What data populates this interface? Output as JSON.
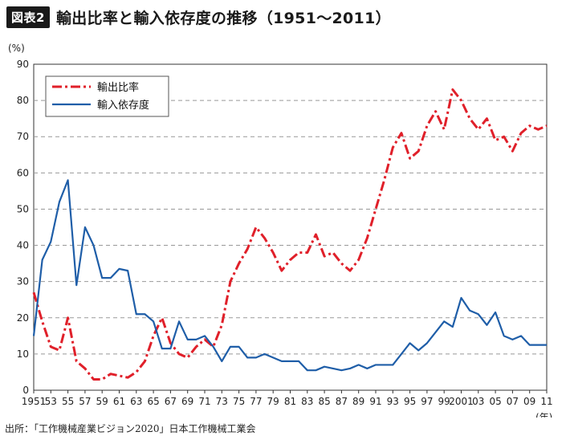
{
  "header": {
    "badge": "図表2",
    "title": "輸出比率と輸入依存度の推移（1951〜2011）"
  },
  "source": "出所：「工作機械産業ビジョン2020」日本工作機械工業会",
  "colors": {
    "export": "#e0202a",
    "import": "#1f5ea8",
    "grid": "#999999"
  },
  "chart_data": {
    "type": "line",
    "y_unit_label": "(%)",
    "x_unit_label": "(年)",
    "ylim": [
      0,
      90
    ],
    "yticks": [
      0,
      10,
      20,
      30,
      40,
      50,
      60,
      70,
      80,
      90
    ],
    "xlim": [
      1951,
      2011
    ],
    "xtick_years": [
      1951,
      1953,
      1955,
      1957,
      1959,
      1961,
      1963,
      1965,
      1967,
      1969,
      1971,
      1973,
      1975,
      1977,
      1979,
      1981,
      1983,
      1985,
      1987,
      1989,
      1991,
      1993,
      1995,
      1997,
      1999,
      2001,
      2003,
      2005,
      2007,
      2009,
      2011
    ],
    "xtick_labels": [
      "1951",
      "53",
      "55",
      "57",
      "59",
      "61",
      "63",
      "65",
      "67",
      "69",
      "71",
      "73",
      "75",
      "77",
      "79",
      "81",
      "83",
      "85",
      "87",
      "89",
      "91",
      "93",
      "95",
      "97",
      "99",
      "2001",
      "03",
      "05",
      "07",
      "09",
      "11"
    ],
    "grid": "horizontal dashed",
    "legend_position": "top-left",
    "x": [
      1951,
      1952,
      1953,
      1954,
      1955,
      1956,
      1957,
      1958,
      1959,
      1960,
      1961,
      1962,
      1963,
      1964,
      1965,
      1966,
      1967,
      1968,
      1969,
      1970,
      1971,
      1972,
      1973,
      1974,
      1975,
      1976,
      1977,
      1978,
      1979,
      1980,
      1981,
      1982,
      1983,
      1984,
      1985,
      1986,
      1987,
      1988,
      1989,
      1990,
      1991,
      1992,
      1993,
      1994,
      1995,
      1996,
      1997,
      1998,
      1999,
      2000,
      2001,
      2002,
      2003,
      2004,
      2005,
      2006,
      2007,
      2008,
      2009,
      2010,
      2011
    ],
    "series": [
      {
        "name": "輸出比率",
        "style": "dash-dot",
        "values": [
          27,
          19,
          12,
          11,
          20,
          8,
          6,
          3,
          3,
          4.5,
          4,
          3.5,
          5,
          8,
          15,
          20,
          13,
          10,
          9,
          12,
          14,
          12,
          18,
          30,
          35,
          39,
          45,
          42,
          38,
          33,
          36,
          38,
          38,
          43,
          37,
          38,
          35,
          33,
          36,
          42,
          50,
          58,
          67,
          71,
          64,
          66,
          73,
          77,
          72,
          83,
          80,
          75,
          72,
          75,
          69,
          70,
          66,
          71,
          73,
          72,
          73
        ]
      },
      {
        "name": "輸入依存度",
        "style": "solid",
        "values": [
          15,
          36,
          41,
          52,
          58,
          29,
          45,
          40,
          31,
          31,
          33.5,
          33,
          21,
          21,
          19,
          11.5,
          11.5,
          19,
          14,
          14,
          15,
          12,
          8,
          12,
          12,
          9,
          9,
          10,
          9,
          8,
          8,
          8,
          5.5,
          5.5,
          6.5,
          6,
          5.5,
          6,
          7,
          6,
          7,
          7,
          7,
          10,
          13,
          11,
          13,
          16,
          19,
          17.5,
          25.5,
          22,
          21,
          18,
          21.5,
          15,
          14,
          15,
          12.5,
          12.5,
          12.5
        ]
      }
    ]
  }
}
